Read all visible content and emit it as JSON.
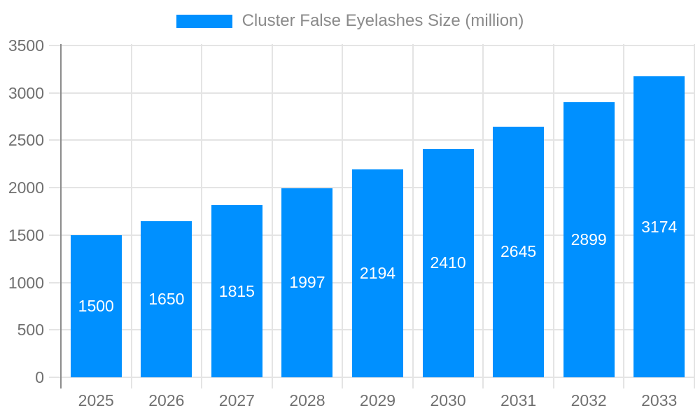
{
  "chart_data": {
    "type": "bar",
    "title": "Cluster False Eyelashes Size (million)",
    "categories": [
      "2025",
      "2026",
      "2027",
      "2028",
      "2029",
      "2030",
      "2031",
      "2032",
      "2033"
    ],
    "values": [
      1500,
      1650,
      1815,
      1997,
      2194,
      2410,
      2645,
      2899,
      3174
    ],
    "xlabel": "",
    "ylabel": "",
    "ylim": [
      0,
      3500
    ],
    "yticks": [
      0,
      500,
      1000,
      1500,
      2000,
      2500,
      3000,
      3500
    ],
    "grid": true,
    "legend_position": "top",
    "colors": {
      "bar": "#0090ff",
      "value_label": "#ffffff",
      "gridline": "#e4e4e4",
      "axis_line": "#8c8c8c",
      "tick_label": "#707070",
      "legend_text": "#8a8a8a"
    }
  }
}
